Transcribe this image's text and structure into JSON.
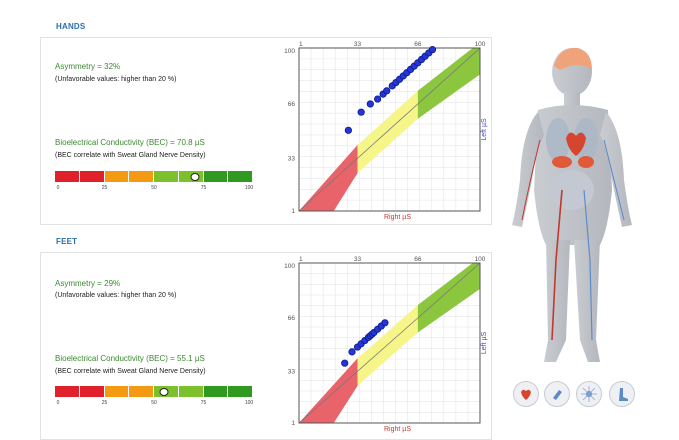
{
  "hands": {
    "title": "HANDS",
    "asymmetry": "Asymmetry = 32%",
    "unfavorable": "(Unfavorable values: higher than 20 %)",
    "bec": "Bioelectrical Conductivity (BEC) = 70.8 µS",
    "bec_note": "(BEC correlate with Sweat Gland Nerve Density)",
    "bec_value": 70.8
  },
  "feet": {
    "title": "FEET",
    "asymmetry": "Asymmetry = 29%",
    "unfavorable": "(Unfavorable values: higher than 20 %)",
    "bec": "Bioelectrical Conductivity (BEC) = 55.1 µS",
    "bec_note": "(BEC correlate with Sweat Gland Nerve Density)",
    "bec_value": 55.1
  },
  "scale_ticks": [
    "0",
    "25",
    "50",
    "75",
    "100"
  ],
  "scale_colors": [
    "#e0202a",
    "#e0202a",
    "#f39a12",
    "#f39a12",
    "#7cc02b",
    "#7cc02b",
    "#2f9a1f",
    "#2f9a1f"
  ],
  "chart_data": [
    {
      "type": "scatter",
      "name": "hands",
      "xlabel": "Right µS",
      "ylabel": "Left µS",
      "x_ticks": [
        "1",
        "33",
        "66",
        "100"
      ],
      "y_ticks": [
        "100",
        "66",
        "33",
        "1"
      ],
      "xlim": [
        1,
        100
      ],
      "ylim": [
        1,
        100
      ],
      "grid": true,
      "points": [
        [
          28,
          50
        ],
        [
          35,
          61
        ],
        [
          40,
          66
        ],
        [
          44,
          69
        ],
        [
          47,
          72
        ],
        [
          49,
          74
        ],
        [
          52,
          77
        ],
        [
          54,
          79
        ],
        [
          56,
          81
        ],
        [
          58,
          83
        ],
        [
          60,
          85
        ],
        [
          62,
          87
        ],
        [
          64,
          89
        ],
        [
          66,
          91
        ],
        [
          68,
          93
        ],
        [
          70,
          95
        ],
        [
          72,
          97
        ],
        [
          74,
          99
        ]
      ]
    },
    {
      "type": "scatter",
      "name": "feet",
      "xlabel": "Right µS",
      "ylabel": "Left µS",
      "x_ticks": [
        "1",
        "33",
        "66",
        "100"
      ],
      "y_ticks": [
        "100",
        "66",
        "33",
        "1"
      ],
      "xlim": [
        1,
        100
      ],
      "ylim": [
        1,
        100
      ],
      "grid": true,
      "points": [
        [
          26,
          38
        ],
        [
          30,
          45
        ],
        [
          33,
          48
        ],
        [
          35,
          50
        ],
        [
          37,
          52
        ],
        [
          39,
          54
        ],
        [
          40,
          55
        ],
        [
          41,
          56
        ],
        [
          42,
          57
        ],
        [
          44,
          59
        ],
        [
          46,
          61
        ],
        [
          48,
          63
        ]
      ]
    }
  ],
  "colors": {
    "accent": "#2a6fa8",
    "green_text": "#3a8a2e",
    "point": "#2436d6"
  },
  "icons": [
    "heart-icon",
    "hand-icon",
    "nerve-icon",
    "foot-icon"
  ]
}
